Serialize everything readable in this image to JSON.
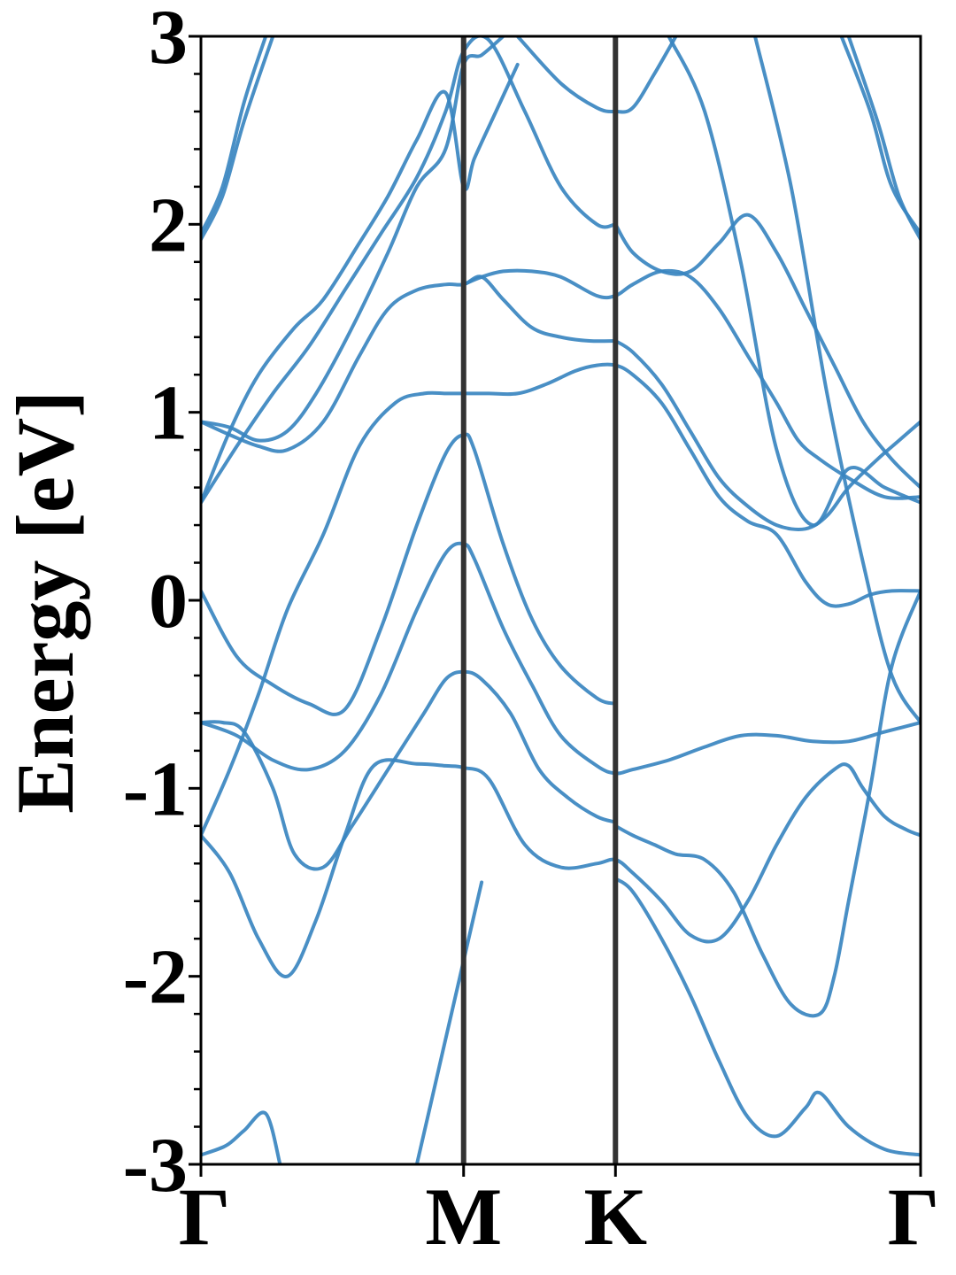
{
  "chart_data": {
    "type": "line",
    "title": "",
    "xlabel": "",
    "ylabel": "Energy [eV]",
    "ylim": [
      -3,
      3
    ],
    "xlim": [
      0,
      1
    ],
    "y_ticks": [
      "-3",
      "-2",
      "-1",
      "0",
      "1",
      "2",
      "3"
    ],
    "y_minor_step": 0.2,
    "x_ticks": [
      {
        "label": "Γ",
        "x": 0
      },
      {
        "label": "M",
        "x": 0.365
      },
      {
        "label": "K",
        "x": 0.576
      },
      {
        "label": "Γ",
        "x": 1
      }
    ],
    "high_symmetry_lines": [
      0.365,
      0.576
    ],
    "line_color": "#3a86c0",
    "divider_color": "#333333",
    "grid": false,
    "legend": "none",
    "series": [
      {
        "x": [
          0,
          0.035,
          0.06,
          0.09,
          0.11
        ],
        "values": [
          -2.95,
          -2.9,
          -2.82,
          -2.73,
          -3.0
        ]
      },
      {
        "x": [
          0,
          0.04,
          0.08,
          0.12,
          0.16,
          0.2,
          0.24,
          0.3,
          0.34,
          0.365,
          0.4,
          0.45,
          0.5,
          0.55,
          0.576,
          0.6,
          0.64,
          0.68,
          0.72,
          0.76,
          0.8,
          0.84,
          0.88,
          0.9,
          0.92,
          0.95,
          0.98,
          1.0
        ],
        "values": [
          -1.25,
          -1.45,
          -1.8,
          -2.0,
          -1.7,
          -1.25,
          -0.88,
          -0.87,
          -0.88,
          -0.89,
          -0.95,
          -1.3,
          -1.42,
          -1.4,
          -1.38,
          -1.45,
          -1.6,
          -1.78,
          -1.8,
          -1.6,
          -1.3,
          -1.05,
          -0.9,
          -0.88,
          -1.0,
          -1.15,
          -1.22,
          -1.25
        ]
      },
      {
        "x": [
          0,
          0.03,
          0.06,
          0.1,
          0.13,
          0.17,
          0.21,
          0.26,
          0.31,
          0.34,
          0.365,
          0.39,
          0.43,
          0.47,
          0.51,
          0.55,
          0.576
        ],
        "values": [
          -0.65,
          -0.65,
          -0.7,
          -1.0,
          -1.35,
          -1.42,
          -1.2,
          -0.9,
          -0.6,
          -0.42,
          -0.38,
          -0.42,
          -0.6,
          -0.9,
          -1.05,
          -1.15,
          -1.18
        ]
      },
      {
        "x": [
          0,
          0.05,
          0.1,
          0.15,
          0.2,
          0.25,
          0.3,
          0.34,
          0.365,
          0.38,
          0.42,
          0.46,
          0.5,
          0.55,
          0.576
        ],
        "values": [
          0.05,
          -0.3,
          -0.45,
          -0.55,
          -0.58,
          -0.15,
          0.4,
          0.78,
          0.88,
          0.8,
          0.3,
          -0.1,
          -0.35,
          -0.52,
          -0.55
        ]
      },
      {
        "x": [
          0,
          0.05,
          0.1,
          0.15,
          0.2,
          0.25,
          0.3,
          0.34,
          0.365,
          0.38,
          0.42,
          0.46,
          0.5,
          0.55,
          0.576,
          0.6,
          0.65,
          0.7,
          0.75,
          0.8,
          0.85,
          0.9,
          0.95,
          1.0
        ],
        "values": [
          -0.65,
          -0.72,
          -0.85,
          -0.9,
          -0.8,
          -0.5,
          -0.05,
          0.25,
          0.3,
          0.22,
          -0.15,
          -0.45,
          -0.72,
          -0.88,
          -0.92,
          -0.9,
          -0.85,
          -0.78,
          -0.72,
          -0.72,
          -0.75,
          -0.75,
          -0.7,
          -0.65
        ]
      },
      {
        "x": [
          0.576,
          0.6,
          0.64,
          0.68,
          0.72,
          0.76,
          0.8,
          0.84,
          0.86,
          0.9,
          0.95,
          1.0
        ],
        "values": [
          -1.48,
          -1.55,
          -1.8,
          -2.1,
          -2.45,
          -2.75,
          -2.85,
          -2.7,
          -2.62,
          -2.8,
          -2.92,
          -2.95
        ]
      },
      {
        "x": [
          0.576,
          0.6,
          0.63,
          0.66,
          0.7,
          0.74,
          0.78,
          0.82,
          0.86,
          0.88,
          0.9,
          0.93,
          0.96,
          1.0
        ],
        "values": [
          -1.2,
          -1.25,
          -1.3,
          -1.35,
          -1.38,
          -1.55,
          -1.88,
          -2.15,
          -2.2,
          -2.0,
          -1.6,
          -1.0,
          -0.35,
          0.05
        ]
      },
      {
        "x": [
          0,
          0.04,
          0.08,
          0.12,
          0.17,
          0.22,
          0.27,
          0.31,
          0.34,
          0.365
        ],
        "values": [
          -1.25,
          -0.9,
          -0.5,
          -0.05,
          0.35,
          0.82,
          1.05,
          1.1,
          1.1,
          1.1
        ]
      },
      {
        "x": [
          0.365,
          0.4,
          0.44,
          0.48,
          0.52,
          0.55,
          0.576,
          0.6,
          0.64,
          0.68,
          0.72,
          0.76,
          0.8,
          0.84,
          0.87,
          0.9,
          0.93,
          0.96,
          1.0
        ],
        "values": [
          1.1,
          1.1,
          1.1,
          1.15,
          1.22,
          1.25,
          1.25,
          1.2,
          1.05,
          0.8,
          0.55,
          0.42,
          0.35,
          0.1,
          -0.02,
          -0.02,
          0.03,
          0.05,
          0.05
        ]
      },
      {
        "x": [
          0.365,
          0.39,
          0.42,
          0.46,
          0.5,
          0.55,
          0.576,
          0.6,
          0.64,
          0.68,
          0.72,
          0.76,
          0.8,
          0.83,
          0.86,
          0.9,
          0.95,
          1.0
        ],
        "values": [
          1.68,
          1.72,
          1.75,
          1.75,
          1.72,
          1.62,
          1.62,
          1.68,
          1.75,
          1.72,
          1.55,
          1.3,
          1.05,
          0.85,
          0.75,
          0.65,
          0.55,
          0.55
        ]
      },
      {
        "x": [
          0,
          0.04,
          0.08,
          0.12,
          0.17,
          0.22,
          0.26,
          0.3,
          0.34,
          0.365,
          0.39,
          0.42,
          0.46,
          0.5,
          0.54,
          0.576
        ],
        "values": [
          0.95,
          0.88,
          0.82,
          0.8,
          0.95,
          1.3,
          1.55,
          1.65,
          1.68,
          1.68,
          1.72,
          1.6,
          1.45,
          1.4,
          1.38,
          1.38
        ]
      },
      {
        "x": [
          0.576,
          0.6,
          0.64,
          0.68,
          0.72,
          0.76,
          0.8,
          0.84,
          0.87,
          0.9,
          0.94,
          0.97,
          1.0
        ],
        "values": [
          1.38,
          1.32,
          1.15,
          0.9,
          0.65,
          0.5,
          0.4,
          0.38,
          0.45,
          0.6,
          0.75,
          0.85,
          0.95
        ]
      },
      {
        "x": [
          0,
          0.05,
          0.1,
          0.15,
          0.2,
          0.25,
          0.3,
          0.34,
          0.365,
          0.4,
          0.45,
          0.5,
          0.55,
          0.576
        ],
        "values": [
          0.52,
          0.82,
          1.1,
          1.35,
          1.65,
          1.95,
          2.25,
          2.6,
          2.92,
          2.98,
          2.6,
          2.2,
          2.0,
          2.0
        ]
      },
      {
        "x": [
          0.576,
          0.6,
          0.64,
          0.68,
          0.72,
          0.76,
          0.8,
          0.84,
          0.88,
          0.92,
          0.96,
          1.0
        ],
        "values": [
          2.0,
          1.85,
          1.75,
          1.75,
          1.9,
          2.05,
          1.85,
          1.55,
          1.25,
          0.95,
          0.75,
          0.6
        ]
      },
      {
        "x": [
          0,
          0.04,
          0.08,
          0.13,
          0.17,
          0.22,
          0.26,
          0.3,
          0.34,
          0.365,
          0.38,
          0.41,
          0.44
        ],
        "values": [
          0.52,
          0.9,
          1.2,
          1.45,
          1.6,
          1.9,
          2.15,
          2.45,
          2.7,
          2.2,
          2.35,
          2.6,
          2.85
        ]
      },
      {
        "x": [
          0,
          0.04,
          0.08,
          0.12,
          0.16,
          0.21,
          0.26,
          0.3,
          0.34,
          0.365,
          0.39,
          0.42
        ],
        "values": [
          0.95,
          0.92,
          0.85,
          0.9,
          1.1,
          1.45,
          1.85,
          2.2,
          2.4,
          2.85,
          2.9,
          3.0
        ]
      },
      {
        "x": [
          0.44,
          0.5,
          0.55,
          0.576,
          0.6,
          0.63,
          0.66
        ],
        "values": [
          3.0,
          2.75,
          2.62,
          2.6,
          2.62,
          2.8,
          3.0
        ]
      },
      {
        "x": [
          0,
          0.03,
          0.06,
          0.09
        ],
        "values": [
          1.95,
          2.2,
          2.65,
          3.0
        ]
      },
      {
        "x": [
          0,
          0.03,
          0.06,
          0.1
        ],
        "values": [
          1.92,
          2.15,
          2.55,
          3.0
        ]
      },
      {
        "x": [
          0.65,
          0.7,
          0.75,
          0.8,
          0.85,
          0.9,
          0.95,
          1.0
        ],
        "values": [
          3.0,
          2.6,
          1.8,
          0.8,
          0.4,
          0.7,
          0.6,
          0.52
        ]
      },
      {
        "x": [
          0.77,
          0.82,
          0.87,
          0.92,
          0.96,
          1.0
        ],
        "values": [
          3.0,
          2.2,
          1.1,
          0.2,
          -0.4,
          -0.65
        ]
      },
      {
        "x": [
          0.89,
          0.93,
          0.96,
          1.0
        ],
        "values": [
          3.0,
          2.6,
          2.2,
          1.95
        ]
      },
      {
        "x": [
          0.9,
          0.94,
          0.97,
          1.0
        ],
        "values": [
          3.0,
          2.55,
          2.15,
          1.92
        ]
      },
      {
        "x": [
          0.3,
          0.33,
          0.36,
          0.39
        ],
        "values": [
          -3.0,
          -2.5,
          -2.0,
          -1.5
        ]
      }
    ]
  }
}
